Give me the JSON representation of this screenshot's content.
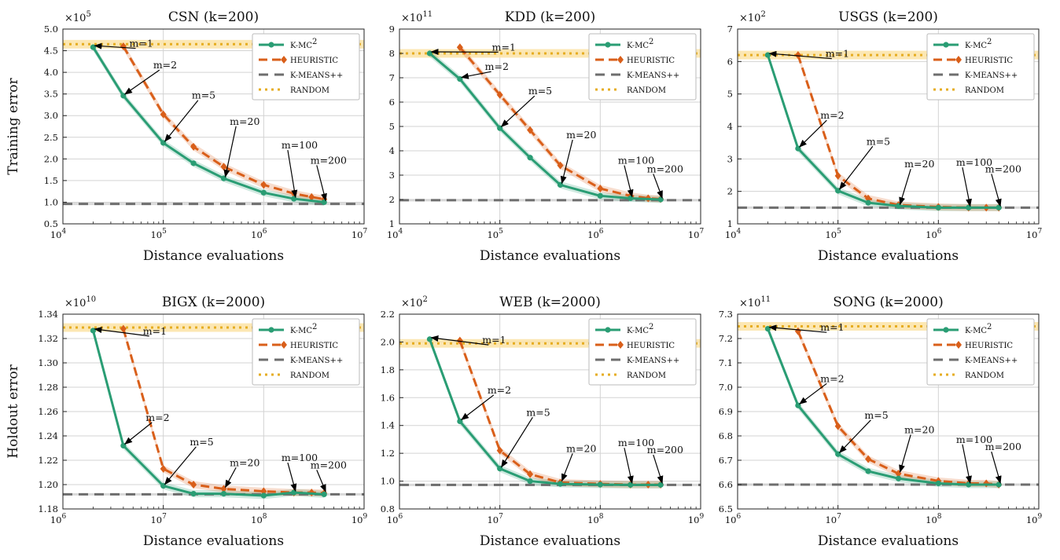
{
  "series_styles": [
    {
      "key": "kmc2",
      "name": "K-MC",
      "sup": "2",
      "color": "#2a9d74",
      "dash": "",
      "width": 3,
      "marker": "circle"
    },
    {
      "key": "heur",
      "name": "HEURISTIC",
      "sup": "",
      "color": "#d95f1a",
      "dash": "11,6",
      "width": 3,
      "marker": "diamond"
    },
    {
      "key": "kmpp",
      "name": "K-MEANS++",
      "sup": "",
      "color": "#6e6e6e",
      "dash": "12,8",
      "width": 3,
      "marker": ""
    },
    {
      "key": "rand",
      "name": "RANDOM",
      "sup": "",
      "color": "#e6ad21",
      "dash": "3,5",
      "width": 3,
      "marker": ""
    }
  ],
  "row_ylabels": [
    "Training error",
    "Holdout error"
  ],
  "chart_data": [
    {
      "type": "line",
      "title": "CSN (k=200)",
      "xlabel": "Distance evaluations",
      "ylabel": "Training error",
      "xscale": "log",
      "xlim": [
        10000,
        10000000
      ],
      "xticks": [
        10000,
        100000,
        1000000,
        10000000
      ],
      "xtick_labels": [
        "10",
        "10",
        "10",
        "10"
      ],
      "xtick_exps": [
        "4",
        "5",
        "6",
        "7"
      ],
      "ylim": [
        0.5,
        5.0
      ],
      "yticks": [
        0.5,
        1.0,
        1.5,
        2.0,
        2.5,
        3.0,
        3.5,
        4.0,
        4.5,
        5.0
      ],
      "ytick_labels": [
        "0.5",
        "1.0",
        "1.5",
        "2.0",
        "2.5",
        "3.0",
        "3.5",
        "4.0",
        "4.5",
        "5.0"
      ],
      "multiplier": "×10",
      "multiplier_exp": "5",
      "grid": true,
      "legend": "top-right",
      "series": [
        {
          "name": "K-MC2",
          "x": [
            20000,
            40000,
            100000,
            200000,
            400000,
            1000000,
            2000000,
            4000000
          ],
          "y": [
            4.58,
            3.46,
            2.37,
            1.9,
            1.55,
            1.22,
            1.08,
            1.0
          ]
        },
        {
          "name": "HEURISTIC",
          "x": [
            40000,
            100000,
            200000,
            400000,
            1000000,
            2000000,
            3000000,
            4000000
          ],
          "y": [
            4.6,
            3.03,
            2.28,
            1.82,
            1.4,
            1.2,
            1.12,
            1.07
          ]
        },
        {
          "name": "K-MEANS++",
          "y": 0.96
        },
        {
          "name": "RANDOM",
          "y": 4.65
        }
      ],
      "annotations": [
        {
          "text": "m=1",
          "x": 20000,
          "y": 4.58,
          "tx": 55000,
          "ty": 4.3
        },
        {
          "text": "m=2",
          "x": 40000,
          "y": 3.46,
          "tx": 95000,
          "ty": 3.8
        },
        {
          "text": "m=5",
          "x": 100000,
          "y": 2.37,
          "tx": 230000,
          "ty": 3.1
        },
        {
          "text": "m=20",
          "x": 400000,
          "y": 1.55,
          "tx": 550000,
          "ty": 2.5
        },
        {
          "text": "m=100",
          "x": 2000000,
          "y": 1.08,
          "tx": 1800000,
          "ty": 1.95
        },
        {
          "text": "m=200",
          "x": 4000000,
          "y": 1.0,
          "tx": 3500000,
          "ty": 1.6
        }
      ]
    },
    {
      "type": "line",
      "title": "KDD (k=200)",
      "xlabel": "Distance evaluations",
      "ylabel": "",
      "xscale": "log",
      "xlim": [
        10000,
        10000000
      ],
      "xticks": [
        10000,
        100000,
        1000000,
        10000000
      ],
      "xtick_labels": [
        "10",
        "10",
        "10",
        "10"
      ],
      "xtick_exps": [
        "4",
        "5",
        "6",
        "7"
      ],
      "ylim": [
        1,
        9
      ],
      "yticks": [
        1,
        2,
        3,
        4,
        5,
        6,
        7,
        8,
        9
      ],
      "ytick_labels": [
        "1",
        "2",
        "3",
        "4",
        "5",
        "6",
        "7",
        "8",
        "9"
      ],
      "multiplier": "×10",
      "multiplier_exp": "11",
      "grid": true,
      "legend": "top-right",
      "series": [
        {
          "name": "K-MC2",
          "x": [
            20000,
            40000,
            100000,
            200000,
            400000,
            1000000,
            2000000,
            4000000
          ],
          "y": [
            8.0,
            6.95,
            4.93,
            3.72,
            2.6,
            2.15,
            2.05,
            2.0
          ]
        },
        {
          "name": "HEURISTIC",
          "x": [
            40000,
            100000,
            200000,
            400000,
            1000000,
            2000000,
            3000000,
            4000000
          ],
          "y": [
            8.25,
            6.3,
            4.85,
            3.4,
            2.45,
            2.15,
            2.05,
            2.02
          ]
        },
        {
          "name": "K-MEANS++",
          "y": 1.97
        },
        {
          "name": "RANDOM",
          "y": 8.0
        }
      ],
      "annotations": [
        {
          "text": "m=1",
          "x": 20000,
          "y": 8.0,
          "tx": 100000,
          "ty": 7.6
        },
        {
          "text": "m=2",
          "x": 40000,
          "y": 6.95,
          "tx": 85000,
          "ty": 6.8
        },
        {
          "text": "m=5",
          "x": 100000,
          "y": 4.93,
          "tx": 230000,
          "ty": 5.8
        },
        {
          "text": "m=20",
          "x": 400000,
          "y": 2.6,
          "tx": 550000,
          "ty": 4.0
        },
        {
          "text": "m=100",
          "x": 2000000,
          "y": 2.05,
          "tx": 1800000,
          "ty": 2.95
        },
        {
          "text": "m=200",
          "x": 4000000,
          "y": 2.0,
          "tx": 3500000,
          "ty": 2.6
        }
      ]
    },
    {
      "type": "line",
      "title": "USGS (k=200)",
      "xlabel": "Distance evaluations",
      "ylabel": "",
      "xscale": "log",
      "xlim": [
        10000,
        10000000
      ],
      "xticks": [
        10000,
        100000,
        1000000,
        10000000
      ],
      "xtick_labels": [
        "10",
        "10",
        "10",
        "10"
      ],
      "xtick_exps": [
        "4",
        "5",
        "6",
        "7"
      ],
      "ylim": [
        1,
        7
      ],
      "yticks": [
        1,
        2,
        3,
        4,
        5,
        6,
        7
      ],
      "ytick_labels": [
        "1",
        "2",
        "3",
        "4",
        "5",
        "6",
        "7"
      ],
      "multiplier": "×10",
      "multiplier_exp": "2",
      "grid": true,
      "legend": "top-right",
      "series": [
        {
          "name": "K-MC2",
          "x": [
            20000,
            40000,
            100000,
            200000,
            400000,
            1000000,
            2000000,
            4000000
          ],
          "y": [
            6.2,
            3.32,
            2.02,
            1.65,
            1.55,
            1.5,
            1.5,
            1.5
          ]
        },
        {
          "name": "HEURISTIC",
          "x": [
            40000,
            100000,
            200000,
            400000,
            1000000,
            2000000,
            3000000,
            4000000
          ],
          "y": [
            6.2,
            2.48,
            1.78,
            1.58,
            1.52,
            1.5,
            1.5,
            1.5
          ]
        },
        {
          "name": "K-MEANS++",
          "y": 1.5
        },
        {
          "name": "RANDOM",
          "y": 6.2
        }
      ],
      "annotations": [
        {
          "text": "m=1",
          "x": 20000,
          "y": 6.2,
          "tx": 90000,
          "ty": 5.75
        },
        {
          "text": "m=2",
          "x": 40000,
          "y": 3.32,
          "tx": 80000,
          "ty": 3.85
        },
        {
          "text": "m=5",
          "x": 100000,
          "y": 2.02,
          "tx": 230000,
          "ty": 3.05
        },
        {
          "text": "m=20",
          "x": 400000,
          "y": 1.55,
          "tx": 550000,
          "ty": 2.35
        },
        {
          "text": "m=100",
          "x": 2000000,
          "y": 1.5,
          "tx": 1800000,
          "ty": 2.4
        },
        {
          "text": "m=200",
          "x": 4000000,
          "y": 1.5,
          "tx": 3500000,
          "ty": 2.2
        }
      ]
    },
    {
      "type": "line",
      "title": "BIGX (k=2000)",
      "xlabel": "Distance evaluations",
      "ylabel": "Holdout error",
      "xscale": "log",
      "xlim": [
        1000000,
        1000000000
      ],
      "xticks": [
        1000000,
        10000000,
        100000000,
        1000000000
      ],
      "xtick_labels": [
        "10",
        "10",
        "10",
        "10"
      ],
      "xtick_exps": [
        "6",
        "7",
        "8",
        "9"
      ],
      "ylim": [
        1.18,
        1.34
      ],
      "yticks": [
        1.18,
        1.2,
        1.22,
        1.24,
        1.26,
        1.28,
        1.3,
        1.32,
        1.34
      ],
      "ytick_labels": [
        "1.18",
        "1.20",
        "1.22",
        "1.24",
        "1.26",
        "1.28",
        "1.30",
        "1.32",
        "1.34"
      ],
      "multiplier": "×10",
      "multiplier_exp": "10",
      "grid": true,
      "legend": "top-right",
      "series": [
        {
          "name": "K-MC2",
          "x": [
            2000000,
            4000000,
            10000000,
            20000000,
            40000000,
            100000000,
            200000000,
            400000000
          ],
          "y": [
            1.3265,
            1.232,
            1.199,
            1.1925,
            1.1925,
            1.191,
            1.1935,
            1.192
          ]
        },
        {
          "name": "HEURISTIC",
          "x": [
            4000000,
            10000000,
            20000000,
            40000000,
            100000000,
            200000000,
            300000000,
            400000000
          ],
          "y": [
            1.328,
            1.213,
            1.2,
            1.1965,
            1.1945,
            1.1935,
            1.1935,
            1.193
          ]
        },
        {
          "name": "K-MEANS++",
          "y": 1.192
        },
        {
          "name": "RANDOM",
          "y": 1.329
        }
      ],
      "annotations": [
        {
          "text": "m=1",
          "x": 2000000,
          "y": 1.3265,
          "tx": 7500000,
          "ty": 1.313
        },
        {
          "text": "m=2",
          "x": 4000000,
          "y": 1.232,
          "tx": 8000000,
          "ty": 1.242
        },
        {
          "text": "m=5",
          "x": 10000000,
          "y": 1.199,
          "tx": 22000000,
          "ty": 1.222
        },
        {
          "text": "m=20",
          "x": 40000000,
          "y": 1.1965,
          "tx": 55000000,
          "ty": 1.205
        },
        {
          "text": "m=100",
          "x": 200000000,
          "y": 1.1935,
          "tx": 180000000,
          "ty": 1.209
        },
        {
          "text": "m=200",
          "x": 400000000,
          "y": 1.193,
          "tx": 350000000,
          "ty": 1.203
        }
      ]
    },
    {
      "type": "line",
      "title": "WEB (k=2000)",
      "xlabel": "Distance evaluations",
      "ylabel": "",
      "xscale": "log",
      "xlim": [
        1000000,
        1000000000
      ],
      "xticks": [
        1000000,
        10000000,
        100000000,
        1000000000
      ],
      "xtick_labels": [
        "10",
        "10",
        "10",
        "10"
      ],
      "xtick_exps": [
        "6",
        "7",
        "8",
        "9"
      ],
      "ylim": [
        0.8,
        2.2
      ],
      "yticks": [
        0.8,
        1.0,
        1.2,
        1.4,
        1.6,
        1.8,
        2.0,
        2.2
      ],
      "ytick_labels": [
        "0.8",
        "1.0",
        "1.2",
        "1.4",
        "1.6",
        "1.8",
        "2.0",
        "2.2"
      ],
      "multiplier": "×10",
      "multiplier_exp": "2",
      "grid": true,
      "legend": "top-right",
      "series": [
        {
          "name": "K-MC2",
          "x": [
            2000000,
            4000000,
            10000000,
            20000000,
            40000000,
            100000000,
            200000000,
            400000000
          ],
          "y": [
            2.02,
            1.43,
            1.09,
            1.0,
            0.98,
            0.975,
            0.973,
            0.973
          ]
        },
        {
          "name": "HEURISTIC",
          "x": [
            4000000,
            10000000,
            20000000,
            40000000,
            100000000,
            200000000,
            300000000,
            400000000
          ],
          "y": [
            2.01,
            1.22,
            1.05,
            0.99,
            0.98,
            0.975,
            0.975,
            0.975
          ]
        },
        {
          "name": "K-MEANS++",
          "y": 0.973
        },
        {
          "name": "RANDOM",
          "y": 1.99
        }
      ],
      "annotations": [
        {
          "text": "m=1",
          "x": 2000000,
          "y": 2.02,
          "tx": 8000000,
          "ty": 1.9
        },
        {
          "text": "m=2",
          "x": 4000000,
          "y": 1.43,
          "tx": 9000000,
          "ty": 1.54
        },
        {
          "text": "m=5",
          "x": 10000000,
          "y": 1.09,
          "tx": 22000000,
          "ty": 1.38
        },
        {
          "text": "m=20",
          "x": 40000000,
          "y": 0.99,
          "tx": 55000000,
          "ty": 1.12
        },
        {
          "text": "m=100",
          "x": 200000000,
          "y": 0.975,
          "tx": 180000000,
          "ty": 1.16
        },
        {
          "text": "m=200",
          "x": 400000000,
          "y": 0.975,
          "tx": 350000000,
          "ty": 1.11
        }
      ]
    },
    {
      "type": "line",
      "title": "SONG (k=2000)",
      "xlabel": "Distance evaluations",
      "ylabel": "",
      "xscale": "log",
      "xlim": [
        1000000,
        1000000000
      ],
      "xticks": [
        1000000,
        10000000,
        100000000,
        1000000000
      ],
      "xtick_labels": [
        "10",
        "10",
        "10",
        "10"
      ],
      "xtick_exps": [
        "6",
        "7",
        "8",
        "9"
      ],
      "ylim": [
        6.5,
        7.3
      ],
      "yticks": [
        6.5,
        6.6,
        6.7,
        6.8,
        6.9,
        7.0,
        7.1,
        7.2,
        7.3
      ],
      "ytick_labels": [
        "6.5",
        "6.6",
        "6.7",
        "6.8",
        "6.9",
        "7.0",
        "7.1",
        "7.2",
        "7.3"
      ],
      "multiplier": "×10",
      "multiplier_exp": "11",
      "grid": true,
      "legend": "top-right",
      "series": [
        {
          "name": "K-MC2",
          "x": [
            2000000,
            4000000,
            10000000,
            20000000,
            40000000,
            100000000,
            200000000,
            400000000
          ],
          "y": [
            7.24,
            6.925,
            6.725,
            6.655,
            6.625,
            6.605,
            6.6,
            6.6
          ]
        },
        {
          "name": "HEURISTIC",
          "x": [
            4000000,
            10000000,
            20000000,
            40000000,
            100000000,
            200000000,
            300000000,
            400000000
          ],
          "y": [
            7.23,
            6.84,
            6.705,
            6.645,
            6.615,
            6.605,
            6.605,
            6.6
          ]
        },
        {
          "name": "K-MEANS++",
          "y": 6.6
        },
        {
          "name": "RANDOM",
          "y": 7.25
        }
      ],
      "annotations": [
        {
          "text": "m=1",
          "x": 2000000,
          "y": 7.24,
          "tx": 8000000,
          "ty": 7.18
        },
        {
          "text": "m=2",
          "x": 4000000,
          "y": 6.925,
          "tx": 8000000,
          "ty": 6.97
        },
        {
          "text": "m=5",
          "x": 10000000,
          "y": 6.725,
          "tx": 22000000,
          "ty": 6.82
        },
        {
          "text": "m=20",
          "x": 40000000,
          "y": 6.645,
          "tx": 55000000,
          "ty": 6.76
        },
        {
          "text": "m=100",
          "x": 200000000,
          "y": 6.6,
          "tx": 180000000,
          "ty": 6.72
        },
        {
          "text": "m=200",
          "x": 400000000,
          "y": 6.6,
          "tx": 350000000,
          "ty": 6.69
        }
      ]
    }
  ]
}
